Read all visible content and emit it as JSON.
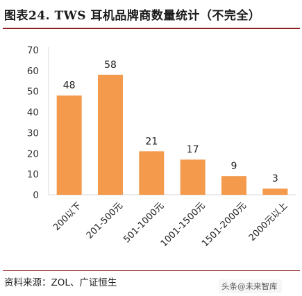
{
  "header": {
    "title": "图表24.  TWS 耳机品牌商数量统计（不完全）"
  },
  "footer": {
    "source": "资料来源：ZOL、广证恒生",
    "watermark_brand": "头条",
    "watermark_account": "@未来智库"
  },
  "chart_data": {
    "type": "bar",
    "title": "",
    "xlabel": "",
    "ylabel": "",
    "categories": [
      "200以下",
      "201-500元",
      "501-1000元",
      "1001-1500元",
      "1501-2000元",
      "2000元以上"
    ],
    "values": [
      48,
      58,
      21,
      17,
      9,
      3
    ],
    "ylim": [
      0,
      70
    ],
    "yticks": [
      0,
      10,
      20,
      30,
      40,
      50,
      60,
      70
    ],
    "grid": false,
    "legend": "none",
    "bar_color": "#f39a4c",
    "data_labels": true
  }
}
